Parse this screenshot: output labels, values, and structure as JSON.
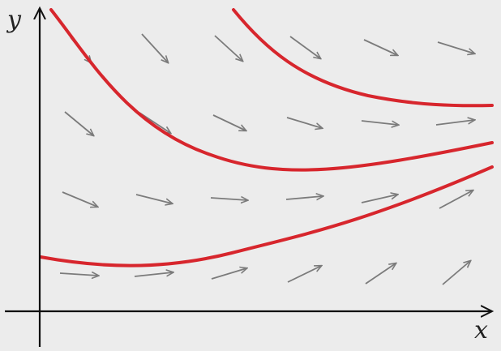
{
  "labels": {
    "y_axis": "y",
    "x_axis": "x"
  },
  "colors": {
    "background": "#ececec",
    "axis": "#111111",
    "arrow": "#7b7b7b",
    "curve": "#d7262d"
  },
  "field_description": {
    "arrow_grid_rows": 4,
    "arrow_grid_cols": 6,
    "solution_curve_count": 4
  }
}
